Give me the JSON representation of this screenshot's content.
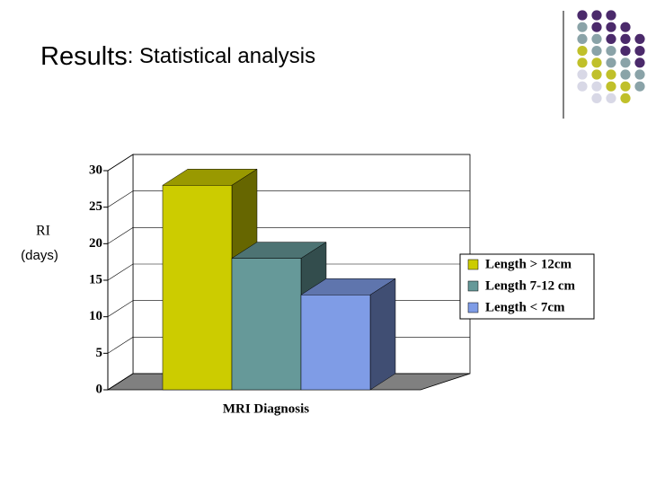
{
  "header": {
    "title": "Results",
    "subtitle": ": Statistical analysis"
  },
  "chart_data": {
    "type": "bar3d",
    "categories": [
      null
    ],
    "xlabel": "MRI Diagnosis",
    "ylabel": [
      "RI",
      "(days)"
    ],
    "series": [
      {
        "name": "Length > 12cm",
        "color": "#cccc00",
        "values": [
          28
        ]
      },
      {
        "name": "Length 7-12 cm",
        "color": "#669999",
        "values": [
          18
        ]
      },
      {
        "name": "Length < 7cm",
        "color": "#7f9ce6",
        "values": [
          13
        ]
      }
    ],
    "ylim": [
      0,
      30
    ],
    "yticks": [
      0,
      5,
      10,
      15,
      20,
      25,
      30
    ],
    "grid": true,
    "legend": "right"
  }
}
